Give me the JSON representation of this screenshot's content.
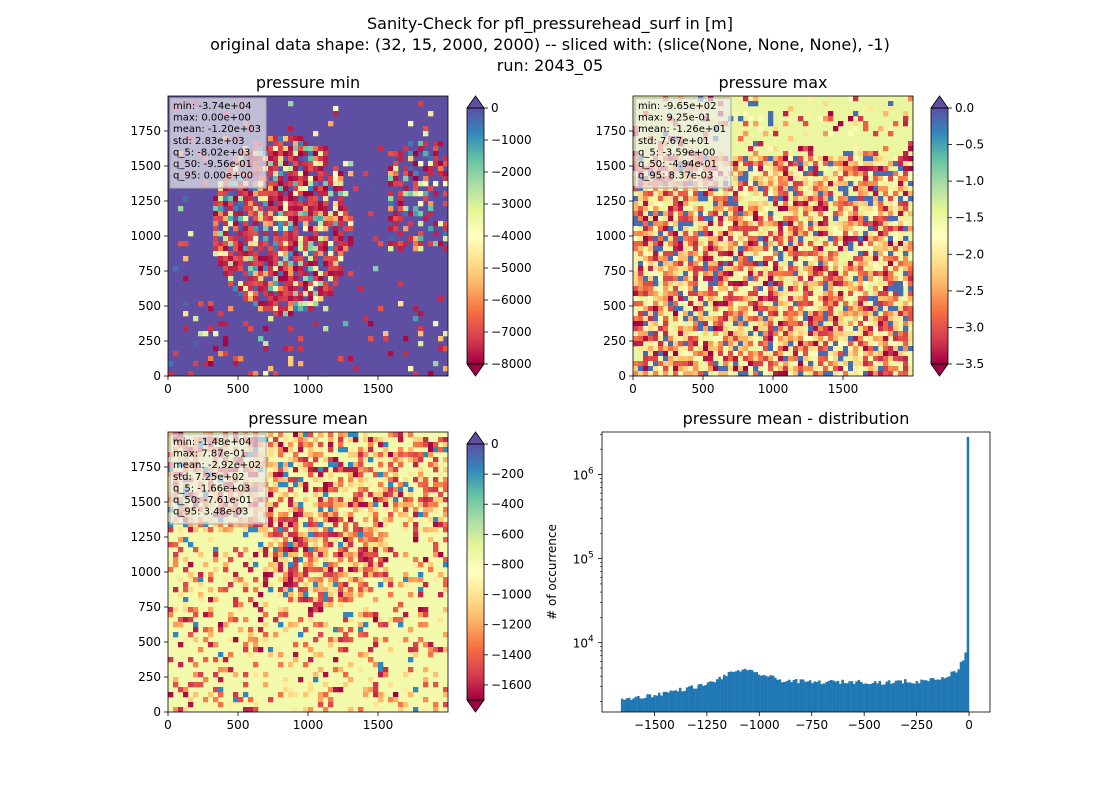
{
  "figure": {
    "title_lines": [
      "Sanity-Check for pfl_pressurehead_surf in [m]",
      "original data shape: (32, 15, 2000, 2000) -- sliced with: (slice(None, None, None), -1)",
      "run: 2043_05"
    ]
  },
  "chart_data": [
    {
      "type": "heatmap",
      "title": "pressure min",
      "xlim": [
        0,
        2000
      ],
      "ylim": [
        0,
        2000
      ],
      "xticks": [
        0,
        500,
        1000,
        1500
      ],
      "yticks": [
        0,
        250,
        500,
        750,
        1000,
        1250,
        1500,
        1750
      ],
      "colormap": "Spectral",
      "colorbar": {
        "range": [
          -8000,
          0
        ],
        "ticks": [
          0,
          -1000,
          -2000,
          -3000,
          -4000,
          -5000,
          -6000,
          -7000,
          -8000
        ],
        "tick_labels": [
          "0",
          "−1000",
          "−2000",
          "−3000",
          "−4000",
          "−5000",
          "−6000",
          "−7000",
          "−8000"
        ],
        "extend": "both"
      },
      "stats": [
        "min: -3.74e+04",
        "max: 0.00e+00",
        "mean: -1.20e+03",
        "std: 2.83e+03",
        "q_5: -8.02e+03",
        "q_50: -9.56e-01",
        "q_95: 0.00e+00"
      ],
      "background_level": 1.0
    },
    {
      "type": "heatmap",
      "title": "pressure max",
      "xlim": [
        0,
        2000
      ],
      "ylim": [
        0,
        2000
      ],
      "xticks": [
        0,
        500,
        1000,
        1500
      ],
      "yticks": [
        0,
        250,
        500,
        750,
        1000,
        1250,
        1500,
        1750
      ],
      "colormap": "Spectral",
      "colorbar": {
        "range": [
          -3.5,
          0
        ],
        "ticks": [
          0,
          -0.5,
          -1,
          -1.5,
          -2,
          -2.5,
          -3,
          -3.5
        ],
        "tick_labels": [
          "0.0",
          "−0.5",
          "−1.0",
          "−1.5",
          "−2.0",
          "−2.5",
          "−3.0",
          "−3.5"
        ],
        "extend": "both"
      },
      "stats": [
        "min: -9.65e+02",
        "max: 9.25e-01",
        "mean: -1.26e+01",
        "std: 7.67e+01",
        "q_5: -3.59e+00",
        "q_50: -4.94e-01",
        "q_95: 8.37e-03"
      ],
      "background_level": 0.58
    },
    {
      "type": "heatmap",
      "title": "pressure mean",
      "xlim": [
        0,
        2000
      ],
      "ylim": [
        0,
        2000
      ],
      "xticks": [
        0,
        500,
        1000,
        1500
      ],
      "yticks": [
        0,
        250,
        500,
        750,
        1000,
        1250,
        1500,
        1750
      ],
      "colormap": "Spectral",
      "colorbar": {
        "range": [
          -1700,
          0
        ],
        "ticks": [
          0,
          -200,
          -400,
          -600,
          -800,
          -1000,
          -1200,
          -1400,
          -1600
        ],
        "tick_labels": [
          "0",
          "−200",
          "−400",
          "−600",
          "−800",
          "−1000",
          "−1200",
          "−1400",
          "−1600"
        ],
        "extend": "both"
      },
      "stats": [
        "min: -1.48e+04",
        "max: 7.87e-01",
        "mean: -2.92e+02",
        "std: 7.25e+02",
        "q_5: -1.66e+03",
        "q_50: -7.61e-01",
        "q_95: 3.48e-03"
      ],
      "background_level": 0.55
    },
    {
      "type": "bar",
      "title": "pressure mean - distribution",
      "xlabel": "",
      "ylabel": "# of occurrence",
      "xlim": [
        -1750,
        100
      ],
      "ylim": [
        1500,
        3200000
      ],
      "yscale": "log",
      "xticks": [
        -1500,
        -1250,
        -1000,
        -750,
        -500,
        -250,
        0
      ],
      "xtick_labels": [
        "−1500",
        "−1250",
        "−1000",
        "−750",
        "−500",
        "−250",
        "0"
      ],
      "yticks": [
        10000,
        100000,
        1000000
      ],
      "ytick_labels": [
        "10",
        "10",
        "10"
      ],
      "ytick_exponents": [
        "4",
        "5",
        "6"
      ],
      "bar_color": "#1f77b4",
      "bin_range": [
        -1660,
        0
      ],
      "bins": 150,
      "profile_x": [
        -1660,
        -1500,
        -1250,
        -1100,
        -1000,
        -900,
        -750,
        -500,
        -400,
        -300,
        -250,
        -200,
        -150,
        -100,
        -60,
        -40,
        -20,
        -10,
        -5,
        0
      ],
      "profile_y": [
        2100,
        2400,
        3200,
        4800,
        4300,
        3600,
        3400,
        3450,
        3350,
        3500,
        3350,
        3700,
        3700,
        4100,
        4600,
        5600,
        7000,
        9500,
        14000,
        2800000
      ]
    }
  ]
}
